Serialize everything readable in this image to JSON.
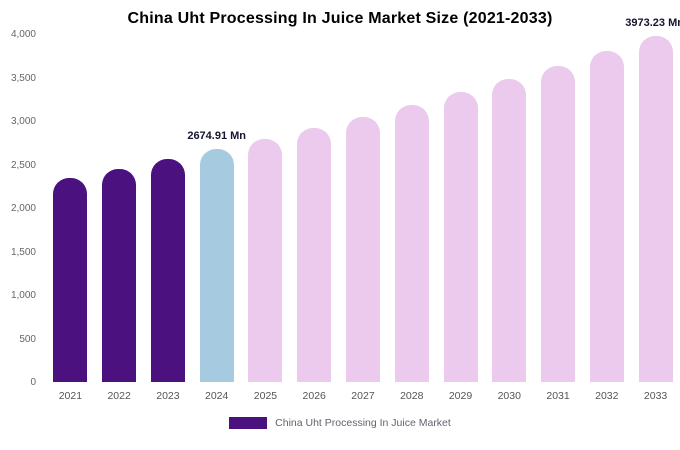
{
  "chart_data": {
    "type": "bar",
    "title": "China Uht Processing In Juice Market Size (2021-2033)",
    "categories": [
      "2021",
      "2022",
      "2023",
      "2024",
      "2025",
      "2026",
      "2027",
      "2028",
      "2029",
      "2030",
      "2031",
      "2032",
      "2033"
    ],
    "values": [
      2345,
      2450,
      2560,
      2674.91,
      2795,
      2920,
      3051,
      3188,
      3331,
      3481,
      3637,
      3800,
      3973.23
    ],
    "bar_colors": [
      "#4b117e",
      "#4b117e",
      "#4b117e",
      "#a6cbe0",
      "#eccaed",
      "#eccaed",
      "#eccaed",
      "#eccaed",
      "#eccaed",
      "#eccaed",
      "#eccaed",
      "#eccaed",
      "#eccaed"
    ],
    "ylim": [
      0,
      4000
    ],
    "yticks": [
      "4,000",
      "3,500",
      "3,000",
      "2,500",
      "2,000",
      "1,500",
      "1,000",
      "500",
      "0"
    ],
    "grid": false,
    "annotations": [
      {
        "index": 3,
        "text": "2674.91 Mn"
      },
      {
        "index": 12,
        "text": "3973.23 Mn"
      }
    ],
    "legend": {
      "label": "China Uht Processing In Juice Market",
      "swatch_color": "#4b117e"
    },
    "legend_position": "bottom"
  }
}
